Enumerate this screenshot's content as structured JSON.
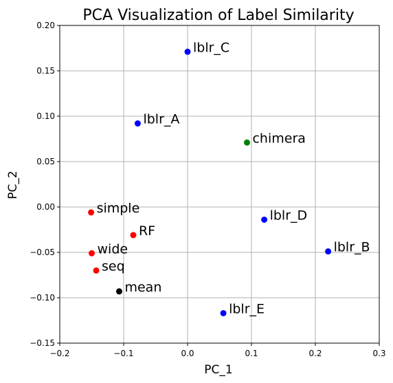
{
  "chart_data": {
    "type": "scatter",
    "title": "PCA Visualization of Label Similarity",
    "xlabel": "PC_1",
    "ylabel": "PC_2",
    "xlim": [
      -0.2,
      0.3
    ],
    "ylim": [
      -0.15,
      0.2
    ],
    "xticks": [
      -0.2,
      -0.1,
      0.0,
      0.1,
      0.2,
      0.3
    ],
    "xtick_labels": [
      "−0.2",
      "−0.1",
      "0.0",
      "0.1",
      "0.2",
      "0.3"
    ],
    "yticks": [
      -0.15,
      -0.1,
      -0.05,
      0.0,
      0.05,
      0.1,
      0.15,
      0.2
    ],
    "ytick_labels": [
      "−0.15",
      "−0.10",
      "−0.05",
      "0.00",
      "0.05",
      "0.10",
      "0.15",
      "0.20"
    ],
    "grid": true,
    "points": [
      {
        "label": "lblr_C",
        "x": 0.0,
        "y": 0.171,
        "color": "#0000ff"
      },
      {
        "label": "lblr_A",
        "x": -0.078,
        "y": 0.092,
        "color": "#0000ff"
      },
      {
        "label": "chimera",
        "x": 0.093,
        "y": 0.071,
        "color": "#008000"
      },
      {
        "label": "simple",
        "x": -0.151,
        "y": -0.006,
        "color": "#ff0000"
      },
      {
        "label": "lblr_D",
        "x": 0.12,
        "y": -0.014,
        "color": "#0000ff"
      },
      {
        "label": "RF",
        "x": -0.085,
        "y": -0.031,
        "color": "#ff0000"
      },
      {
        "label": "wide",
        "x": -0.15,
        "y": -0.051,
        "color": "#ff0000"
      },
      {
        "label": "lblr_B",
        "x": 0.22,
        "y": -0.049,
        "color": "#0000ff"
      },
      {
        "label": "seq",
        "x": -0.143,
        "y": -0.07,
        "color": "#ff0000"
      },
      {
        "label": "mean",
        "x": -0.107,
        "y": -0.093,
        "color": "#000000"
      },
      {
        "label": "lblr_E",
        "x": 0.056,
        "y": -0.117,
        "color": "#0000ff"
      }
    ]
  }
}
